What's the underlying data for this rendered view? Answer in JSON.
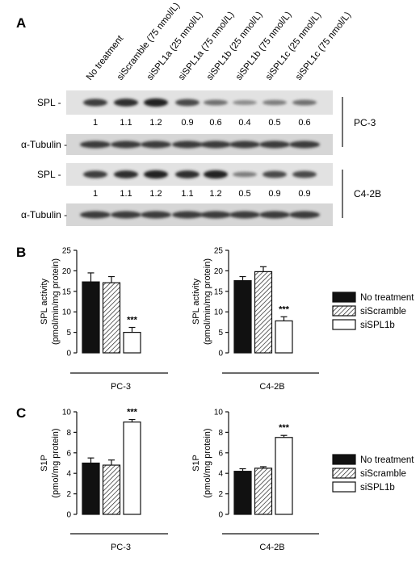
{
  "panels": {
    "a": "A",
    "b": "B",
    "c": "C"
  },
  "blot": {
    "lanes": [
      "No treatment",
      "siScramble (75 nmol/L)",
      "siSPL1a (25 nmol/L)",
      "siSPL1a (75 nmol/L)",
      "siSPL1b (25 nmol/L)",
      "siSPL1b (75 nmol/L)",
      "siSPL1c (25 nmol/L)",
      "siSPL1c (75 nmol/L)"
    ],
    "cell_lines": [
      {
        "name": "PC-3",
        "spl_label": "SPL -",
        "tubulin_label": "α-Tubulin -",
        "quant": [
          "1",
          "1.1",
          "1.2",
          "0.9",
          "0.6",
          "0.4",
          "0.5",
          "0.6"
        ],
        "spl_intensity": [
          1,
          1.1,
          1.2,
          0.9,
          0.6,
          0.4,
          0.5,
          0.6
        ]
      },
      {
        "name": "C4-2B",
        "spl_label": "SPL -",
        "tubulin_label": "α-Tubulin -",
        "quant": [
          "1",
          "1.1",
          "1.2",
          "1.1",
          "1.2",
          "0.5",
          "0.9",
          "0.9"
        ],
        "spl_intensity": [
          1,
          1.1,
          1.2,
          1.1,
          1.2,
          0.5,
          0.9,
          0.9
        ]
      }
    ]
  },
  "legend": [
    "No treatment",
    "siScramble",
    "siSPL1b"
  ],
  "chart_data": [
    {
      "type": "bar",
      "panel": "B",
      "categories": [
        "No treatment",
        "siScramble",
        "siSPL1b"
      ],
      "values": [
        17.3,
        17.1,
        5.0
      ],
      "errors": [
        2.2,
        1.5,
        1.2
      ],
      "ylabel_line1": "SPL activity",
      "ylabel_line2": "(pmol/min/mg protein)",
      "xlabel": "PC-3",
      "ylim": [
        0,
        25
      ],
      "yticks": [
        "0",
        "5",
        "10",
        "15",
        "20",
        "25"
      ],
      "significance": [
        "",
        "",
        "***"
      ]
    },
    {
      "type": "bar",
      "panel": "B",
      "categories": [
        "No treatment",
        "siScramble",
        "siSPL1b"
      ],
      "values": [
        17.6,
        19.8,
        7.8
      ],
      "errors": [
        1.0,
        1.2,
        1.0
      ],
      "ylabel_line1": "SPL activity",
      "ylabel_line2": "(pmol/min/mg protein)",
      "xlabel": "C4-2B",
      "ylim": [
        0,
        25
      ],
      "yticks": [
        "0",
        "5",
        "10",
        "15",
        "20",
        "25"
      ],
      "significance": [
        "",
        "",
        "***"
      ]
    },
    {
      "type": "bar",
      "panel": "C",
      "categories": [
        "No treatment",
        "siScramble",
        "siSPL1b"
      ],
      "values": [
        5.0,
        4.8,
        9.0
      ],
      "errors": [
        0.5,
        0.5,
        0.25
      ],
      "ylabel_line1": "S1P",
      "ylabel_line2": "(pmol/mg protein)",
      "xlabel": "PC-3",
      "ylim": [
        0,
        10
      ],
      "yticks": [
        "0",
        "2",
        "4",
        "6",
        "8",
        "10"
      ],
      "significance": [
        "",
        "",
        "***"
      ]
    },
    {
      "type": "bar",
      "panel": "C",
      "categories": [
        "No treatment",
        "siScramble",
        "siSPL1b"
      ],
      "values": [
        4.2,
        4.5,
        7.5
      ],
      "errors": [
        0.25,
        0.15,
        0.2
      ],
      "ylabel_line1": "S1P",
      "ylabel_line2": "(pmol/mg protein)",
      "xlabel": "C4-2B",
      "ylim": [
        0,
        10
      ],
      "yticks": [
        "0",
        "2",
        "4",
        "6",
        "8",
        "10"
      ],
      "significance": [
        "",
        "",
        "***"
      ]
    }
  ]
}
